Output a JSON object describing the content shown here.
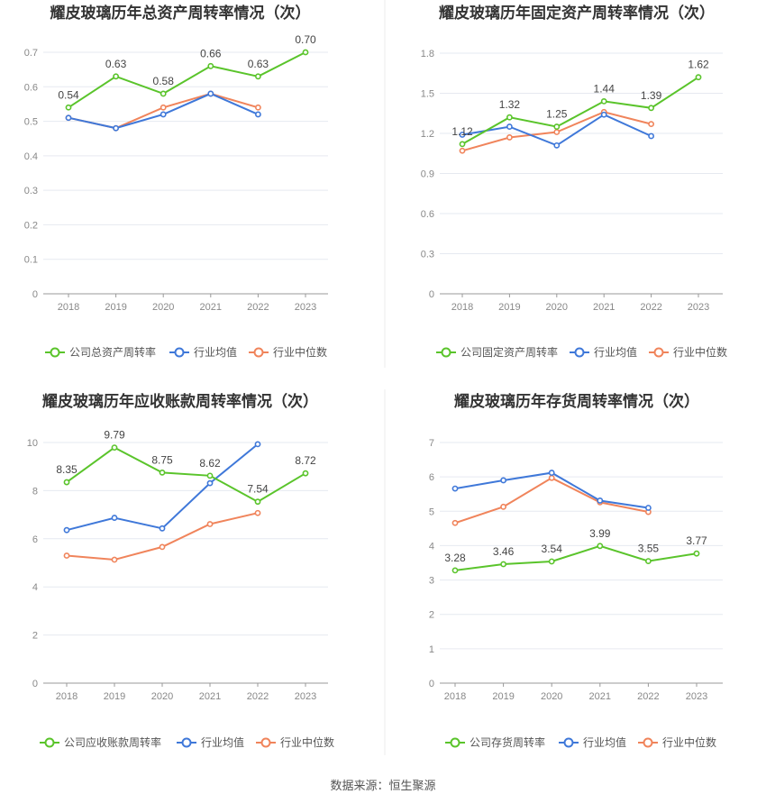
{
  "source": "数据来源：恒生聚源",
  "legend_common": {
    "avg": "行业均值",
    "median": "行业中位数"
  },
  "colors": {
    "company": "#5ac42b",
    "avg": "#3f78d9",
    "median": "#f0845b",
    "grid": "#e6e9f0",
    "axis": "#999999"
  },
  "chart_data": [
    {
      "type": "line",
      "title": "耀皮玻璃历年总资产周转率情况（次）",
      "categories": [
        "2018",
        "2019",
        "2020",
        "2021",
        "2022",
        "2023"
      ],
      "ylim": [
        0,
        0.7
      ],
      "yticks": [
        "0",
        "0.1",
        "0.2",
        "0.3",
        "0.4",
        "0.5",
        "0.6",
        "0.7"
      ],
      "series": [
        {
          "name": "公司总资产周转率",
          "values": [
            0.54,
            0.63,
            0.58,
            0.66,
            0.63,
            0.7
          ],
          "labels": [
            "0.54",
            "0.63",
            "0.58",
            "0.66",
            "0.63",
            "0.70"
          ]
        },
        {
          "name": "行业均值",
          "values": [
            0.51,
            0.48,
            0.52,
            0.58,
            0.52,
            null
          ]
        },
        {
          "name": "行业中位数",
          "values": [
            0.51,
            0.48,
            0.54,
            0.58,
            0.54,
            null
          ]
        }
      ]
    },
    {
      "type": "line",
      "title": "耀皮玻璃历年固定资产周转率情况（次）",
      "categories": [
        "2018",
        "2019",
        "2020",
        "2021",
        "2022",
        "2023"
      ],
      "ylim": [
        0,
        1.8
      ],
      "yticks": [
        "0",
        "0.3",
        "0.6",
        "0.9",
        "1.2",
        "1.5",
        "1.8"
      ],
      "series": [
        {
          "name": "公司固定资产周转率",
          "values": [
            1.12,
            1.32,
            1.25,
            1.44,
            1.39,
            1.62
          ],
          "labels": [
            "1.12",
            "1.32",
            "1.25",
            "1.44",
            "1.39",
            "1.62"
          ]
        },
        {
          "name": "行业均值",
          "values": [
            1.19,
            1.25,
            1.11,
            1.34,
            1.18,
            null
          ]
        },
        {
          "name": "行业中位数",
          "values": [
            1.07,
            1.17,
            1.21,
            1.36,
            1.27,
            null
          ]
        }
      ]
    },
    {
      "type": "line",
      "title": "耀皮玻璃历年应收账款周转率情况（次）",
      "categories": [
        "2018",
        "2019",
        "2020",
        "2021",
        "2022",
        "2023"
      ],
      "ylim": [
        0,
        10
      ],
      "yticks": [
        "0",
        "2",
        "4",
        "6",
        "8",
        "10"
      ],
      "series": [
        {
          "name": "公司应收账款周转率",
          "values": [
            8.35,
            9.79,
            8.75,
            8.62,
            7.54,
            8.72
          ],
          "labels": [
            "8.35",
            "9.79",
            "8.75",
            "8.62",
            "7.54",
            "8.72"
          ]
        },
        {
          "name": "行业均值",
          "values": [
            6.36,
            6.87,
            6.43,
            8.31,
            9.93,
            null
          ]
        },
        {
          "name": "行业中位数",
          "values": [
            5.3,
            5.13,
            5.66,
            6.61,
            7.07,
            null
          ]
        }
      ]
    },
    {
      "type": "line",
      "title": "耀皮玻璃历年存货周转率情况（次）",
      "categories": [
        "2018",
        "2019",
        "2020",
        "2021",
        "2022",
        "2023"
      ],
      "ylim": [
        0,
        7
      ],
      "yticks": [
        "0",
        "1",
        "2",
        "3",
        "4",
        "5",
        "6",
        "7"
      ],
      "series": [
        {
          "name": "公司存货周转率",
          "values": [
            3.28,
            3.46,
            3.54,
            3.99,
            3.55,
            3.77
          ],
          "labels": [
            "3.28",
            "3.46",
            "3.54",
            "3.99",
            "3.55",
            "3.77"
          ]
        },
        {
          "name": "行业均值",
          "values": [
            5.66,
            5.9,
            6.12,
            5.31,
            5.1,
            null
          ]
        },
        {
          "name": "行业中位数",
          "values": [
            4.66,
            5.13,
            5.97,
            5.26,
            4.98,
            null
          ]
        }
      ]
    }
  ]
}
